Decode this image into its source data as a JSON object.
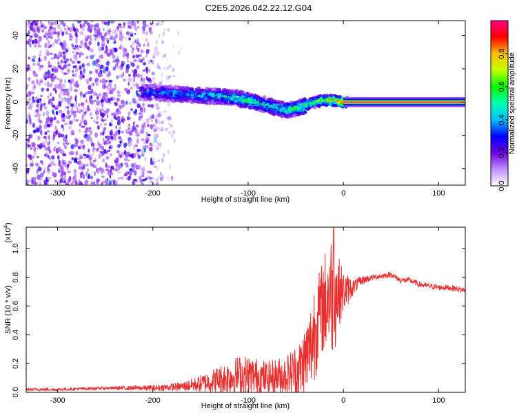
{
  "title": "C2E5.2026.042.22.12.G04",
  "chart_data": [
    {
      "type": "heatmap",
      "xlabel": "Height of straight line (km)",
      "ylabel": "Frequency (Hz)",
      "xlim": [
        -333,
        128
      ],
      "ylim": [
        -50,
        49
      ],
      "xticks": [
        -300,
        -200,
        -100,
        0,
        100
      ],
      "yticks": [
        -40,
        -20,
        0,
        20,
        40
      ],
      "xtick_labels": [
        "-300",
        "-200",
        "-100",
        "0",
        "100"
      ],
      "ytick_labels": [
        "-40",
        "-20",
        "0",
        "20",
        "40"
      ],
      "colorbar": {
        "label": "Normalized spectral amplitude",
        "range": [
          0,
          1
        ],
        "ticks": [
          0.0,
          0.2,
          0.4,
          0.6,
          0.8
        ],
        "tick_labels": [
          "0.0",
          "0.2",
          "0.4",
          "0.6",
          "0.8"
        ],
        "colormap": [
          "#ffffff",
          "#c090ff",
          "#7000e0",
          "#0000ff",
          "#00c0ff",
          "#00ffb0",
          "#00ff00",
          "#c0ff00",
          "#ffc000",
          "#ff0000",
          "#ff0080"
        ]
      },
      "noise_region": {
        "x": [
          -333,
          -170
        ],
        "freq": [
          -50,
          49
        ],
        "amplitude": 0.1
      },
      "signal_track": [
        {
          "x": -213,
          "freq": 6,
          "amplitude": 0.4
        },
        {
          "x": -180,
          "freq": 5,
          "amplitude": 0.45
        },
        {
          "x": -150,
          "freq": 4,
          "amplitude": 0.5
        },
        {
          "x": -120,
          "freq": 3,
          "amplitude": 0.55
        },
        {
          "x": -100,
          "freq": 1,
          "amplitude": 0.6
        },
        {
          "x": -80,
          "freq": -2,
          "amplitude": 0.55
        },
        {
          "x": -60,
          "freq": -5,
          "amplitude": 0.6
        },
        {
          "x": -45,
          "freq": -3,
          "amplitude": 0.6
        },
        {
          "x": -30,
          "freq": 0,
          "amplitude": 0.7
        },
        {
          "x": -20,
          "freq": 1,
          "amplitude": 0.8
        },
        {
          "x": -10,
          "freq": 1,
          "amplitude": 0.9
        },
        {
          "x": 0,
          "freq": 0,
          "amplitude": 1.0
        },
        {
          "x": 128,
          "freq": 0,
          "amplitude": 1.0
        }
      ]
    },
    {
      "type": "line",
      "xlabel": "Height of straight line (km)",
      "ylabel": "SNR (10 * v/v)",
      "yscale_label": "(x10",
      "yscale_exponent": "4",
      "xlim": [
        -333,
        128
      ],
      "ylim": [
        0,
        1.15
      ],
      "xticks": [
        -300,
        -200,
        -100,
        0,
        100
      ],
      "yticks": [
        0.0,
        0.2,
        0.4,
        0.6,
        0.8,
        1.0
      ],
      "xtick_labels": [
        "-300",
        "-200",
        "-100",
        "0",
        "100"
      ],
      "ytick_labels": [
        "0.0",
        "0.2",
        "0.4",
        "0.6",
        "0.8",
        "1.0"
      ],
      "series": [
        {
          "name": "SNR",
          "color": "#e83030",
          "x": [
            -333,
            -300,
            -250,
            -200,
            -170,
            -150,
            -130,
            -110,
            -100,
            -80,
            -60,
            -45,
            -35,
            -30,
            -25,
            -20,
            -15,
            -10,
            -5,
            0,
            10,
            20,
            30,
            40,
            50,
            60,
            70,
            80,
            90,
            100,
            110,
            120,
            128
          ],
          "values": [
            0.02,
            0.02,
            0.03,
            0.03,
            0.04,
            0.06,
            0.09,
            0.12,
            0.12,
            0.1,
            0.12,
            0.16,
            0.3,
            0.45,
            0.55,
            0.62,
            0.68,
            0.7,
            0.7,
            0.7,
            0.73,
            0.78,
            0.8,
            0.81,
            0.82,
            0.78,
            0.78,
            0.75,
            0.74,
            0.73,
            0.73,
            0.72,
            0.71
          ],
          "jitter": [
            0.01,
            0.01,
            0.01,
            0.02,
            0.03,
            0.06,
            0.1,
            0.14,
            0.14,
            0.12,
            0.14,
            0.22,
            0.3,
            0.38,
            0.3,
            0.36,
            0.4,
            0.46,
            0.25,
            0.15,
            0.06,
            0.03,
            0.02,
            0.02,
            0.02,
            0.02,
            0.02,
            0.02,
            0.02,
            0.02,
            0.02,
            0.02,
            0.02
          ],
          "peak": {
            "x": -10,
            "value": 1.15
          }
        }
      ]
    }
  ]
}
